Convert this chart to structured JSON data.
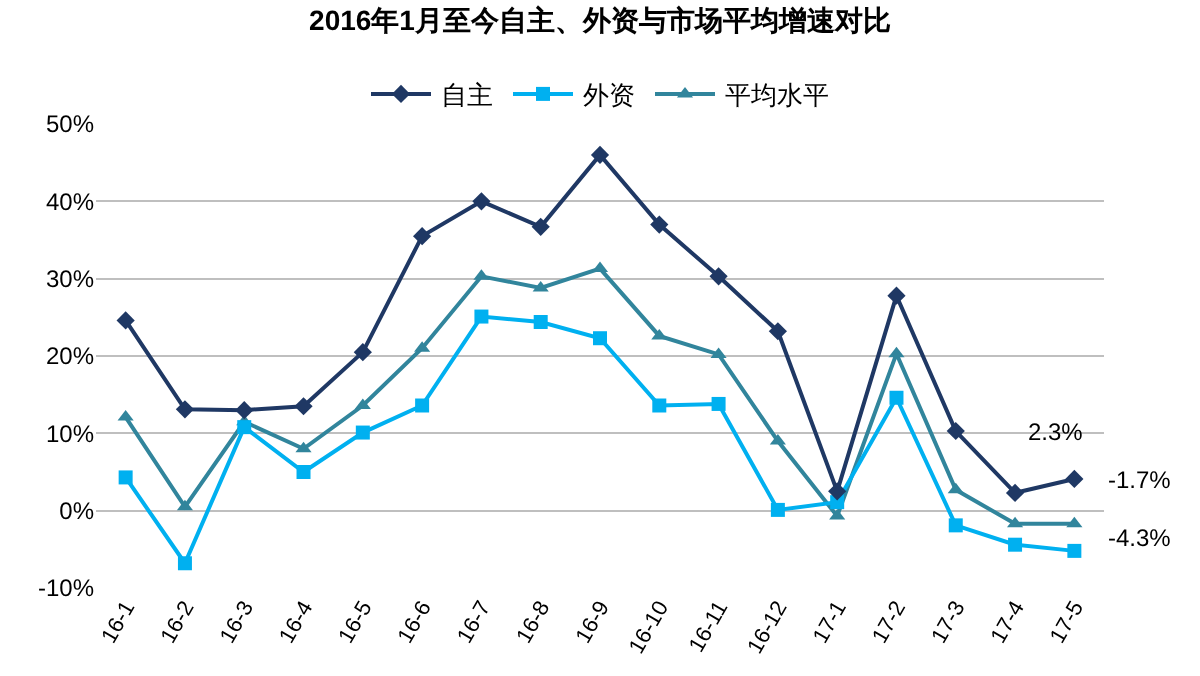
{
  "chart_data": {
    "type": "line",
    "title": "2016年1月至今自主、外资与市场平均增速对比",
    "categories": [
      "16-1",
      "16-2",
      "16-3",
      "16-4",
      "16-5",
      "16-6",
      "16-7",
      "16-8",
      "16-9",
      "16-10",
      "16-11",
      "16-12",
      "17-1",
      "17-2",
      "17-3",
      "17-4",
      "17-5"
    ],
    "series": [
      {
        "name": "自主",
        "color": "#1f3864",
        "marker": "diamond",
        "values": [
          24.6,
          13.1,
          13,
          13.5,
          20.5,
          35.5,
          40,
          36.7,
          46,
          37,
          30.3,
          23.2,
          2.5,
          27.8,
          10.3,
          2.3,
          4.1
        ]
      },
      {
        "name": "外资",
        "color": "#00b0f0",
        "marker": "square",
        "values": [
          4.3,
          -6.8,
          10.8,
          5,
          10.1,
          13.6,
          25.1,
          24.4,
          22.3,
          13.6,
          13.8,
          0.1,
          1.1,
          14.6,
          -1.9,
          -4.4,
          -5.2
        ]
      },
      {
        "name": "平均水平",
        "color": "#31859c",
        "marker": "triangle",
        "values": [
          12.1,
          0.5,
          11.5,
          8,
          13.6,
          21,
          30.3,
          28.8,
          31.3,
          22.6,
          20.2,
          9,
          -0.7,
          20.3,
          2.7,
          -1.7,
          -1.7
        ]
      }
    ],
    "ylim": [
      -10,
      50
    ],
    "yticks": [
      {
        "value": -10,
        "label": "-10%"
      },
      {
        "value": 0,
        "label": "0%"
      },
      {
        "value": 10,
        "label": "10%"
      },
      {
        "value": 20,
        "label": "20%"
      },
      {
        "value": 30,
        "label": "30%"
      },
      {
        "value": 40,
        "label": "40%"
      },
      {
        "value": 50,
        "label": "50%"
      }
    ],
    "grid": "y",
    "legend": "top",
    "line_style": "solid",
    "annotations": [
      "2.3%",
      "-1.7%",
      "-4.3%"
    ]
  }
}
